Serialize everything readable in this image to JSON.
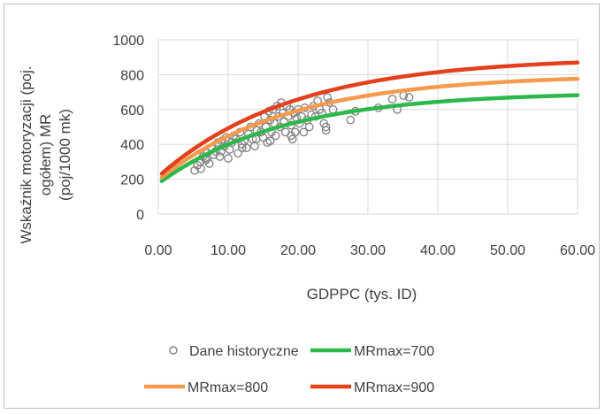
{
  "chart_data": {
    "type": "scatter",
    "title": "",
    "ylabel_lines": [
      "Wskaźnik motoryzacji (poj.",
      "ogółem) MR",
      "(poj/1000 mk)"
    ],
    "xlabel": "GDPPC (tys. ID)",
    "xlim": [
      0,
      60
    ],
    "ylim": [
      0,
      1000
    ],
    "x_ticks": [
      "0.00",
      "10.00",
      "20.00",
      "30.00",
      "40.00",
      "50.00",
      "60.00"
    ],
    "x_tick_values": [
      0,
      10,
      20,
      30,
      40,
      50,
      60
    ],
    "y_ticks": [
      "0",
      "200",
      "400",
      "600",
      "800",
      "1000"
    ],
    "y_tick_values": [
      0,
      200,
      400,
      600,
      800,
      1000
    ],
    "grid": true,
    "legend_position": "bottom",
    "series": [
      {
        "name": "Dane historyczne",
        "kind": "scatter",
        "color": "#808080",
        "points": [
          [
            5.2,
            250
          ],
          [
            5.6,
            280
          ],
          [
            6.0,
            300
          ],
          [
            6.1,
            260
          ],
          [
            6.4,
            330
          ],
          [
            6.8,
            310
          ],
          [
            7.0,
            350
          ],
          [
            7.3,
            290
          ],
          [
            7.6,
            380
          ],
          [
            7.9,
            340
          ],
          [
            8.2,
            360
          ],
          [
            8.5,
            410
          ],
          [
            8.8,
            330
          ],
          [
            9.1,
            420
          ],
          [
            9.4,
            390
          ],
          [
            9.7,
            440
          ],
          [
            10.0,
            320
          ],
          [
            10.2,
            370
          ],
          [
            10.5,
            410
          ],
          [
            10.8,
            450
          ],
          [
            11.1,
            430
          ],
          [
            11.4,
            350
          ],
          [
            11.7,
            470
          ],
          [
            12.0,
            400
          ],
          [
            12.3,
            420
          ],
          [
            12.6,
            380
          ],
          [
            12.9,
            460
          ],
          [
            13.2,
            500
          ],
          [
            13.5,
            430
          ],
          [
            13.8,
            390
          ],
          [
            14.1,
            480
          ],
          [
            14.4,
            520
          ],
          [
            14.7,
            470
          ],
          [
            15.0,
            440
          ],
          [
            15.2,
            560
          ],
          [
            15.4,
            500
          ],
          [
            15.6,
            410
          ],
          [
            15.8,
            590
          ],
          [
            16.0,
            540
          ],
          [
            16.2,
            470
          ],
          [
            16.4,
            600
          ],
          [
            16.6,
            520
          ],
          [
            16.8,
            450
          ],
          [
            17.0,
            620
          ],
          [
            17.2,
            560
          ],
          [
            17.4,
            500
          ],
          [
            17.6,
            640
          ],
          [
            17.8,
            580
          ],
          [
            18.0,
            530
          ],
          [
            18.2,
            470
          ],
          [
            18.4,
            620
          ],
          [
            18.6,
            560
          ],
          [
            18.8,
            600
          ],
          [
            19.0,
            510
          ],
          [
            19.2,
            430
          ],
          [
            19.4,
            580
          ],
          [
            19.6,
            470
          ],
          [
            19.8,
            550
          ],
          [
            20.0,
            600
          ],
          [
            20.2,
            520
          ],
          [
            20.5,
            560
          ],
          [
            20.8,
            470
          ],
          [
            21.0,
            610
          ],
          [
            21.3,
            540
          ],
          [
            21.6,
            500
          ],
          [
            21.9,
            570
          ],
          [
            22.2,
            620
          ],
          [
            22.5,
            560
          ],
          [
            22.8,
            650
          ],
          [
            23.1,
            600
          ],
          [
            23.4,
            580
          ],
          [
            23.7,
            520
          ],
          [
            24.0,
            480
          ],
          [
            24.2,
            670
          ],
          [
            24.5,
            640
          ],
          [
            25.0,
            600
          ],
          [
            27.5,
            540
          ],
          [
            28.2,
            590
          ],
          [
            31.5,
            610
          ],
          [
            33.5,
            660
          ],
          [
            34.2,
            600
          ],
          [
            35.1,
            680
          ],
          [
            35.9,
            670
          ],
          [
            24.0,
            500
          ],
          [
            19.0,
            450
          ],
          [
            16.0,
            420
          ],
          [
            14.0,
            430
          ],
          [
            12.0,
            380
          ],
          [
            9.0,
            360
          ],
          [
            7.0,
            320
          ]
        ]
      },
      {
        "name": "MRmax=700",
        "kind": "line",
        "color": "#2db84b",
        "max": 700,
        "y0": 175,
        "k": 0.056
      },
      {
        "name": "MRmax=800",
        "kind": "line",
        "color": "#f59a4e",
        "max": 800,
        "y0": 195,
        "k": 0.054
      },
      {
        "name": "MRmax=900",
        "kind": "line",
        "color": "#e4401b",
        "max": 900,
        "y0": 215,
        "k": 0.052
      }
    ]
  }
}
